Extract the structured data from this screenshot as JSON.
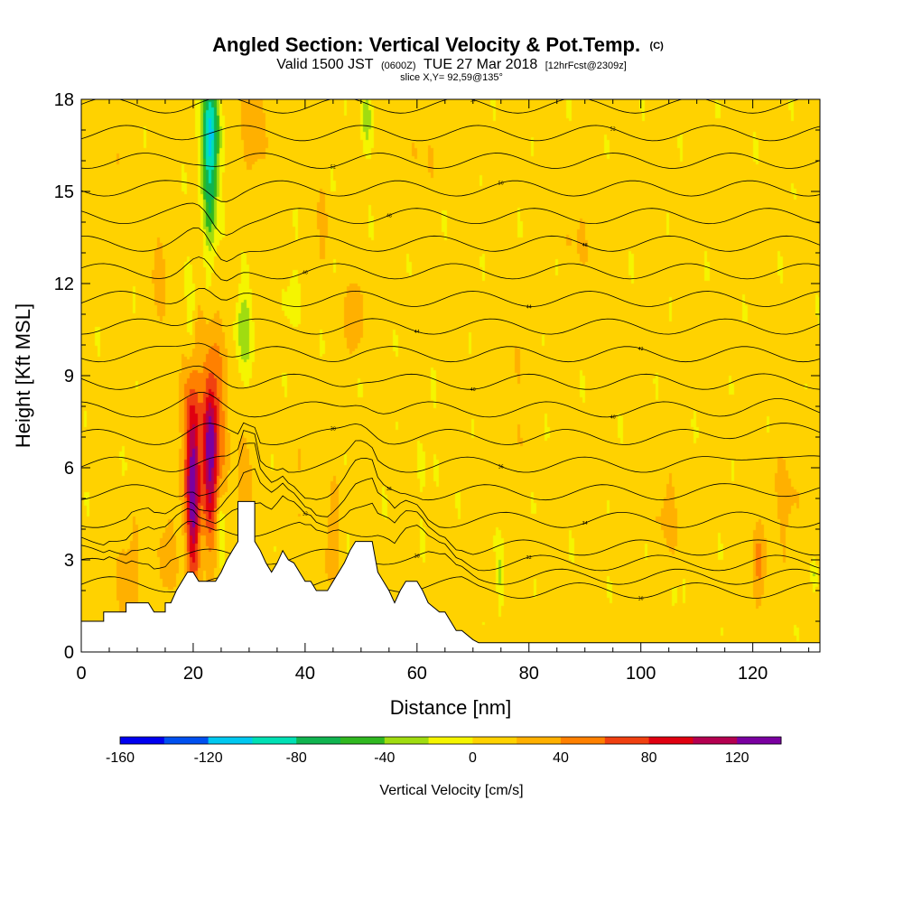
{
  "chart_data": {
    "type": "heatmap",
    "title": "Angled Section: Vertical Velocity & Pot.Temp.",
    "title_unit": "(C)",
    "subtitle_parts": [
      "Valid 1500 JST",
      "(0600Z)",
      "TUE 27 Mar 2018",
      "[12hrFcst@2309z]"
    ],
    "slice_label": "slice X,Y= 92,59@135°",
    "xlabel": "Distance [nm]",
    "ylabel": "Height [Kft MSL]",
    "xlim": [
      0,
      132
    ],
    "ylim": [
      0,
      18
    ],
    "x_ticks": [
      0,
      20,
      40,
      60,
      80,
      100,
      120
    ],
    "y_ticks": [
      0,
      3,
      6,
      9,
      12,
      15,
      18
    ],
    "colorbar": {
      "label": "Vertical Velocity [cm/s]",
      "min": -160,
      "max": 140,
      "step": 20,
      "tick_values": [
        -160,
        -120,
        -80,
        -40,
        0,
        40,
        80,
        120
      ],
      "colors": [
        "#0000f0",
        "#0050f0",
        "#00c8f0",
        "#00e0b4",
        "#10b450",
        "#30b820",
        "#a0dc10",
        "#f5f500",
        "#ffd200",
        "#ffb000",
        "#ff8000",
        "#f04010",
        "#e00010",
        "#b40050",
        "#7a00a0"
      ]
    },
    "terrain_kft": [
      [
        0,
        1
      ],
      [
        2,
        1
      ],
      [
        4,
        1
      ],
      [
        4,
        1.3
      ],
      [
        8,
        1.3
      ],
      [
        8,
        1.6
      ],
      [
        12,
        1.6
      ],
      [
        13,
        1.3
      ],
      [
        15,
        1.3
      ],
      [
        15,
        1.6
      ],
      [
        16,
        1.6
      ],
      [
        17,
        2
      ],
      [
        18,
        2.3
      ],
      [
        19,
        2.6
      ],
      [
        20,
        2.6
      ],
      [
        21,
        2.3
      ],
      [
        24,
        2.3
      ],
      [
        25,
        2.6
      ],
      [
        26,
        3
      ],
      [
        27,
        3.3
      ],
      [
        28,
        3.6
      ],
      [
        28,
        4.9
      ],
      [
        31,
        4.9
      ],
      [
        31,
        3.6
      ],
      [
        32,
        3.3
      ],
      [
        33,
        2.9
      ],
      [
        34,
        2.6
      ],
      [
        35,
        2.9
      ],
      [
        36,
        3.3
      ],
      [
        37,
        3.0
      ],
      [
        38,
        2.9
      ],
      [
        39,
        2.6
      ],
      [
        40,
        2.3
      ],
      [
        41,
        2.3
      ],
      [
        42,
        2.0
      ],
      [
        44,
        2.0
      ],
      [
        45,
        2.3
      ],
      [
        46,
        2.6
      ],
      [
        47,
        2.9
      ],
      [
        48,
        3.3
      ],
      [
        49,
        3.6
      ],
      [
        52,
        3.6
      ],
      [
        53,
        2.6
      ],
      [
        54,
        2.3
      ],
      [
        55,
        2.0
      ],
      [
        56,
        1.6
      ],
      [
        57,
        2.0
      ],
      [
        58,
        2.3
      ],
      [
        60,
        2.3
      ],
      [
        61,
        2.0
      ],
      [
        62,
        1.6
      ],
      [
        64,
        1.3
      ],
      [
        65,
        1.3
      ],
      [
        66,
        1.0
      ],
      [
        67,
        0.7
      ],
      [
        68,
        0.7
      ],
      [
        70,
        0.4
      ],
      [
        71,
        0.3
      ],
      [
        80,
        0.3
      ],
      [
        132,
        0.3
      ]
    ],
    "updrafts": [
      [
        20,
        5.2,
        1.2,
        3.0,
        110
      ],
      [
        23,
        6.5,
        1.2,
        2.4,
        90
      ],
      [
        24,
        7.2,
        2.0,
        3.5,
        45
      ],
      [
        20,
        7.0,
        2.5,
        4.0,
        30
      ],
      [
        29,
        5.5,
        1.5,
        2.0,
        25
      ],
      [
        31,
        17.0,
        2.0,
        1.5,
        30
      ],
      [
        49,
        11.0,
        1.5,
        1.2,
        35
      ],
      [
        43,
        13.5,
        1.0,
        1.5,
        20
      ],
      [
        121,
        2.8,
        1.0,
        1.5,
        45
      ],
      [
        105,
        4.5,
        3.0,
        1.5,
        15
      ],
      [
        126,
        5.0,
        3.0,
        2.0,
        15
      ],
      [
        8,
        2.5,
        2.0,
        1.5,
        25
      ],
      [
        15,
        3.0,
        1.5,
        2.0,
        20
      ],
      [
        40,
        5.0,
        4.0,
        1.5,
        10
      ],
      [
        45,
        3.5,
        1.0,
        1.5,
        30
      ],
      [
        89,
        13.5,
        3.0,
        1.5,
        10
      ],
      [
        5,
        15.5,
        2.0,
        1.5,
        15
      ],
      [
        14,
        12.0,
        2.0,
        2.0,
        15
      ],
      [
        60,
        16.0,
        3.0,
        1.5,
        10
      ],
      [
        78,
        9.0,
        2.0,
        2.0,
        10
      ]
    ],
    "downdrafts": [
      [
        23,
        17.0,
        1.5,
        2.0,
        110
      ],
      [
        23,
        14.5,
        1.2,
        2.0,
        50
      ],
      [
        19.5,
        11.0,
        1.0,
        1.5,
        35
      ],
      [
        29,
        10.5,
        1.5,
        1.5,
        40
      ],
      [
        25,
        4.0,
        0.8,
        1.0,
        45
      ],
      [
        38,
        11.5,
        1.0,
        1.0,
        20
      ],
      [
        51,
        17.5,
        1.0,
        1.0,
        40
      ],
      [
        75,
        2.5,
        0.6,
        1.0,
        30
      ],
      [
        106,
        1.8,
        0.4,
        0.5,
        20
      ],
      [
        131,
        2.5,
        0.5,
        0.5,
        25
      ],
      [
        62,
        6.0,
        3.0,
        2.0,
        5
      ]
    ],
    "theta_contour_labels": [
      "30",
      "32",
      "34",
      "36",
      "38",
      "40",
      "42",
      "44",
      "46",
      "48",
      "50",
      "52",
      "54"
    ]
  }
}
